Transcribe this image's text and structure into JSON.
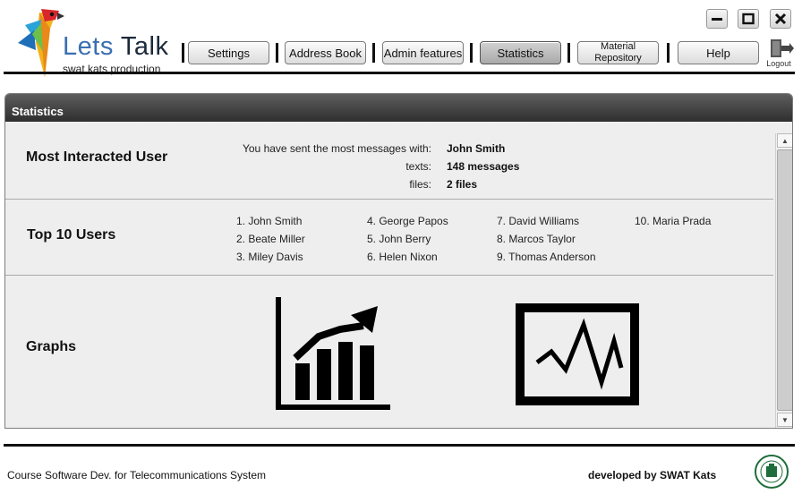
{
  "app": {
    "logo_word1": "Lets",
    "logo_word2": "Talk",
    "logo_subtitle": "swat kats production"
  },
  "nav": {
    "settings": "Settings",
    "address_book": "Address Book",
    "admin_features": "Admin features",
    "statistics": "Statistics",
    "material_line1": "Material",
    "material_line2": "Repository",
    "help": "Help",
    "logout": "Logout",
    "active": "Statistics"
  },
  "window_controls": [
    "minimize-icon",
    "maximize-icon",
    "close-icon"
  ],
  "panel": {
    "title": "Statistics",
    "most_interacted": {
      "heading": "Most Interacted User",
      "sent_label": "You have sent the most messages with:",
      "sent_value": "John Smith",
      "texts_label": "texts:",
      "texts_value": "148 messages",
      "files_label": "files:",
      "files_value": "2 files"
    },
    "top_users": {
      "heading": "Top 10 Users",
      "users": [
        "1. John Smith",
        "2. Beate Miller",
        "3. Miley Davis",
        "4. George Papos",
        "5. John Berry",
        "6. Helen Nixon",
        "7. David Williams",
        "8. Marcos Taylor",
        "9. Thomas Anderson",
        "10. Maria Prada"
      ]
    },
    "graphs": {
      "heading": "Graphs",
      "icons": [
        "bar-chart-growth-icon",
        "line-monitor-icon"
      ]
    }
  },
  "footer": {
    "left": "Course Software Dev. for Telecommunications System",
    "right": "developed by SWAT Kats"
  },
  "colors": {
    "panel_header": "#3a3a3a",
    "panel_bg": "#eeeeee",
    "active_tab": "#b4b4b4",
    "logo_blue": "#3a6fb0"
  }
}
